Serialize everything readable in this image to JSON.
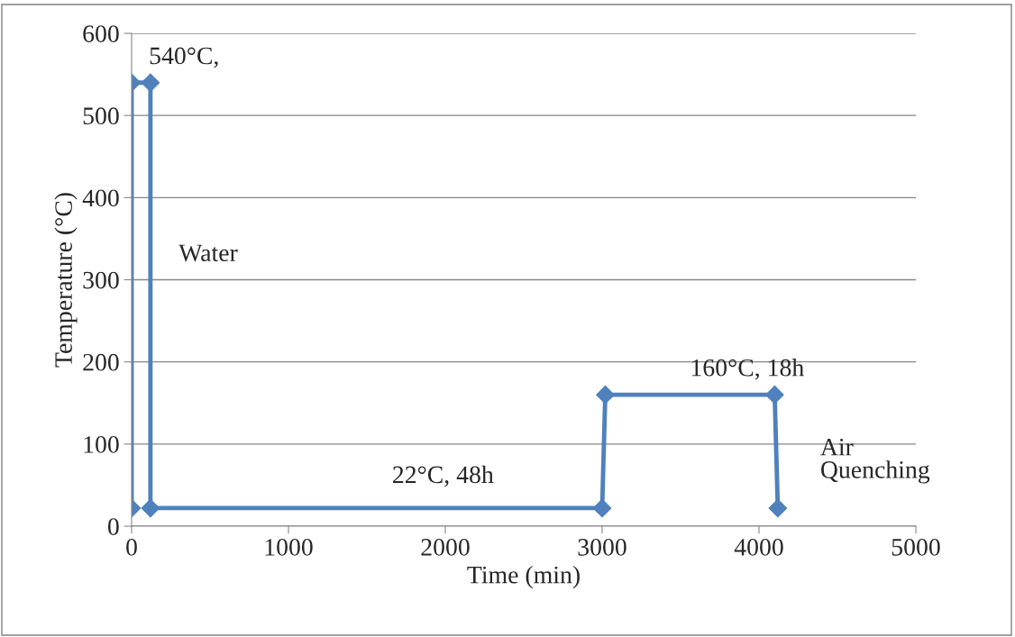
{
  "chart_data": {
    "type": "line",
    "xlabel": "Time (min)",
    "ylabel": "Temperature (°C)",
    "x": [
      0,
      0,
      120,
      120,
      3000,
      3020,
      4100,
      4120
    ],
    "series": [
      {
        "color": "#4f81bd",
        "values": [
          22,
          540,
          540,
          22,
          22,
          160,
          160,
          22
        ]
      }
    ],
    "xlim": [
      0,
      5000
    ],
    "xticks": [
      0,
      1000,
      2000,
      3000,
      4000,
      5000
    ],
    "ylim": [
      0,
      600
    ],
    "yticks": [
      0,
      100,
      200,
      300,
      400,
      500,
      600
    ],
    "grid": "y",
    "marker": "diamond",
    "line_style": "solid",
    "legend": false,
    "annotations": [
      "540°C,",
      "Water",
      "22°C, 48h",
      "160°C, 18h",
      "Air\nQuenching"
    ]
  }
}
